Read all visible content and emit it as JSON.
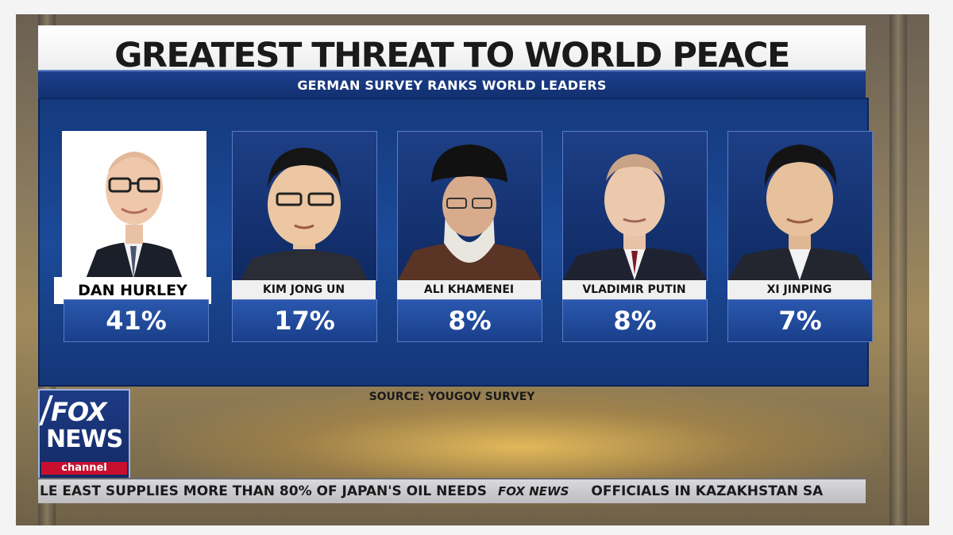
{
  "graphic": {
    "title": "GREATEST THREAT TO WORLD PEACE",
    "subtitle": "GERMAN SURVEY RANKS WORLD LEADERS",
    "source": "SOURCE: YOUGOV SURVEY"
  },
  "leaders": [
    {
      "name": "DAN HURLEY",
      "percent": "41%"
    },
    {
      "name": "KIM JONG UN",
      "percent": "17%"
    },
    {
      "name": "ALI KHAMENEI",
      "percent": "8%"
    },
    {
      "name": "VLADIMIR PUTIN",
      "percent": "8%"
    },
    {
      "name": "XI JINPING",
      "percent": "7%"
    }
  ],
  "logo": {
    "line1": "FOX",
    "line2": "NEWS",
    "line3": "channel"
  },
  "ticker": {
    "left": "LE EAST SUPPLIES MORE THAN 80% OF JAPAN'S OIL NEEDS",
    "brand": "FOX NEWS",
    "right": "OFFICIALS IN KAZAKHSTAN SA"
  },
  "colors": {
    "panel_blue": "#1b4a98",
    "title_text": "#1a1a1a",
    "logo_red": "#c8102e"
  }
}
